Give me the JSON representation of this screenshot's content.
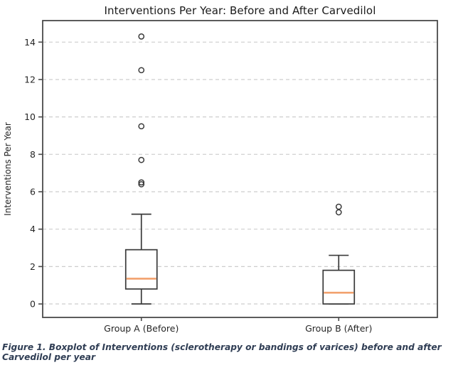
{
  "title": "Interventions Per Year: Before and After Carvedilol",
  "caption": "Figure 1. Boxplot of Interventions (sclerotherapy or bandings of varices) before and after Carvedilol per year",
  "chart_data": {
    "type": "boxplot",
    "title": "Interventions Per Year: Before and After Carvedilol",
    "xlabel": "",
    "ylabel": "Interventions Per Year",
    "categories": [
      "Group A (Before)",
      "Group B (After)"
    ],
    "yticks": [
      0,
      2,
      4,
      6,
      8,
      10,
      12,
      14
    ],
    "ylim": [
      -0.72,
      15.15
    ],
    "grid": "horizontal-dashed",
    "legend": "none",
    "series": [
      {
        "name": "Group A (Before)",
        "whisker_low": 0.0,
        "q1": 0.8,
        "median": 1.35,
        "q3": 2.9,
        "whisker_high": 4.8,
        "outliers": [
          6.4,
          6.5,
          7.7,
          9.5,
          12.5,
          14.3
        ]
      },
      {
        "name": "Group B (After)",
        "whisker_low": 0.0,
        "q1": 0.0,
        "median": 0.6,
        "q3": 1.8,
        "whisker_high": 2.6,
        "outliers": [
          4.9,
          5.2
        ]
      }
    ],
    "colors": {
      "box_line": "#3a3a3a",
      "median": "#f2a16d",
      "grid": "#cdcdcd",
      "spine": "#4a4a4a",
      "tick_text": "#262626",
      "title_text": "#1a1a1a",
      "caption_text": "#2f3d54",
      "background": "#ffffff"
    }
  }
}
